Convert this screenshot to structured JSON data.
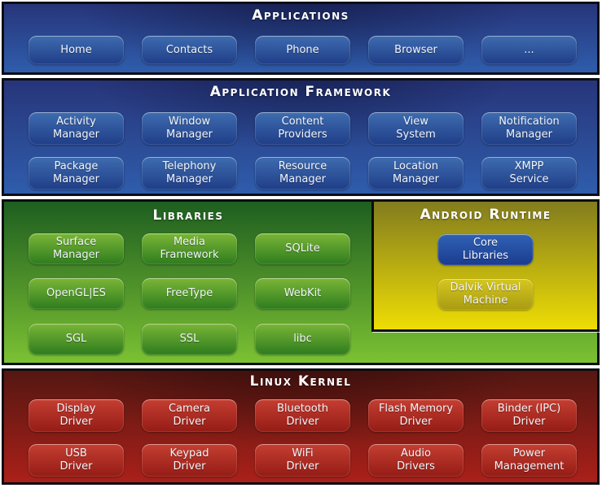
{
  "sections": {
    "applications": {
      "title": "Applications",
      "buttons": [
        "Home",
        "Contacts",
        "Phone",
        "Browser",
        "..."
      ]
    },
    "application_framework": {
      "title": "Application Framework",
      "buttons": [
        "Activity\nManager",
        "Window\nManager",
        "Content\nProviders",
        "View\nSystem",
        "Notification\nManager",
        "Package\nManager",
        "Telephony\nManager",
        "Resource\nManager",
        "Location\nManager",
        "XMPP\nService"
      ]
    },
    "libraries": {
      "title": "Libraries",
      "buttons": [
        "Surface\nManager",
        "Media\nFramework",
        "SQLite",
        "OpenGL|ES",
        "FreeType",
        "WebKit",
        "SGL",
        "SSL",
        "libc"
      ]
    },
    "android_runtime": {
      "title": "Android Runtime",
      "buttons": [
        "Core\nLibraries",
        "Dalvik Virtual\nMachine"
      ]
    },
    "linux_kernel": {
      "title": "Linux Kernel",
      "buttons": [
        "Display\nDriver",
        "Camera\nDriver",
        "Bluetooth\nDriver",
        "Flash Memory\nDriver",
        "Binder (IPC)\nDriver",
        "USB\nDriver",
        "Keypad\nDriver",
        "WiFi\nDriver",
        "Audio\nDrivers",
        "Power\nManagement"
      ]
    }
  },
  "colors": {
    "section_border": "#0d0d12",
    "title_text": "#ffffff",
    "button_text": "#f2f5fa",
    "blue_top": "#27357a",
    "blue_bottom": "#2f5dac",
    "blue_btn_top": "#3f6cb0",
    "blue_btn_bottom": "#1f3e88",
    "green_top": "#1e5e20",
    "green_bottom": "#7cc133",
    "green_btn_top": "#7ab637",
    "green_btn_bottom": "#2e7c1e",
    "runtime_top": "#827c1e",
    "runtime_bottom": "#eedd05",
    "yellow_btn_top": "#d6c71f",
    "yellow_btn_bottom": "#a89b12",
    "core_btn_top": "#2f62b5",
    "core_btn_bottom": "#1c3b8e",
    "red_top": "#551712",
    "red_bottom": "#aa2019",
    "red_btn_top": "#c53e32",
    "red_btn_bottom": "#941c15"
  }
}
